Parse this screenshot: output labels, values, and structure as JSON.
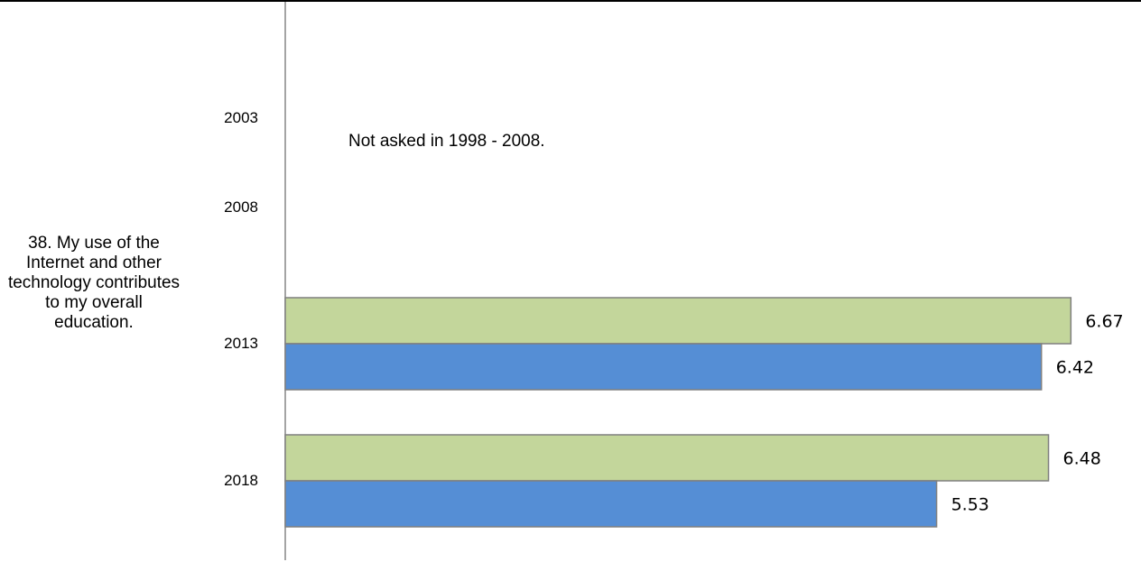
{
  "chart_data": {
    "type": "bar",
    "orientation": "horizontal",
    "question": "38. My use of the Internet and other technology contributes to my overall education.",
    "note": "Not asked in 1998 - 2008.",
    "categories": [
      "2003",
      "2008",
      "2013",
      "2018"
    ],
    "series": [
      {
        "color": "#c3d69b",
        "values": [
          null,
          null,
          6.67,
          6.48
        ]
      },
      {
        "color": "#558ed5",
        "values": [
          null,
          null,
          6.42,
          5.53
        ]
      }
    ],
    "xlim": [
      0,
      7.25
    ],
    "grid": false,
    "legend": "none"
  }
}
